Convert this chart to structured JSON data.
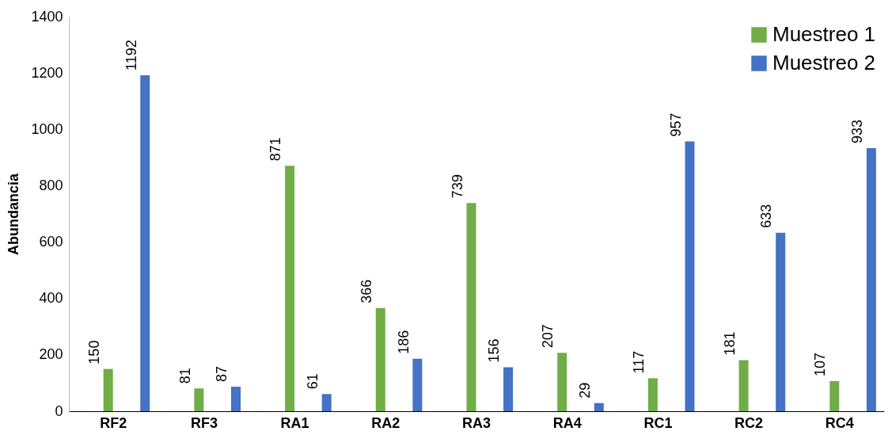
{
  "chart_data": {
    "type": "bar",
    "ylabel": "Abundancia",
    "categories": [
      "RF2",
      "RF3",
      "RA1",
      "RA2",
      "RA3",
      "RA4",
      "RC1",
      "RC2",
      "RC4"
    ],
    "series": [
      {
        "name": "Muestreo 1",
        "color": "#70ad47",
        "values": [
          150,
          81,
          871,
          366,
          739,
          207,
          117,
          181,
          107
        ]
      },
      {
        "name": "Muestreo 2",
        "color": "#4472c4",
        "values": [
          1192,
          87,
          61,
          186,
          156,
          29,
          957,
          633,
          933
        ]
      }
    ],
    "ylim": [
      0,
      1400
    ],
    "yticks": [
      0,
      200,
      400,
      600,
      800,
      1000,
      1200,
      1400
    ],
    "data_labels": true,
    "legend": "top right",
    "grid": false
  }
}
